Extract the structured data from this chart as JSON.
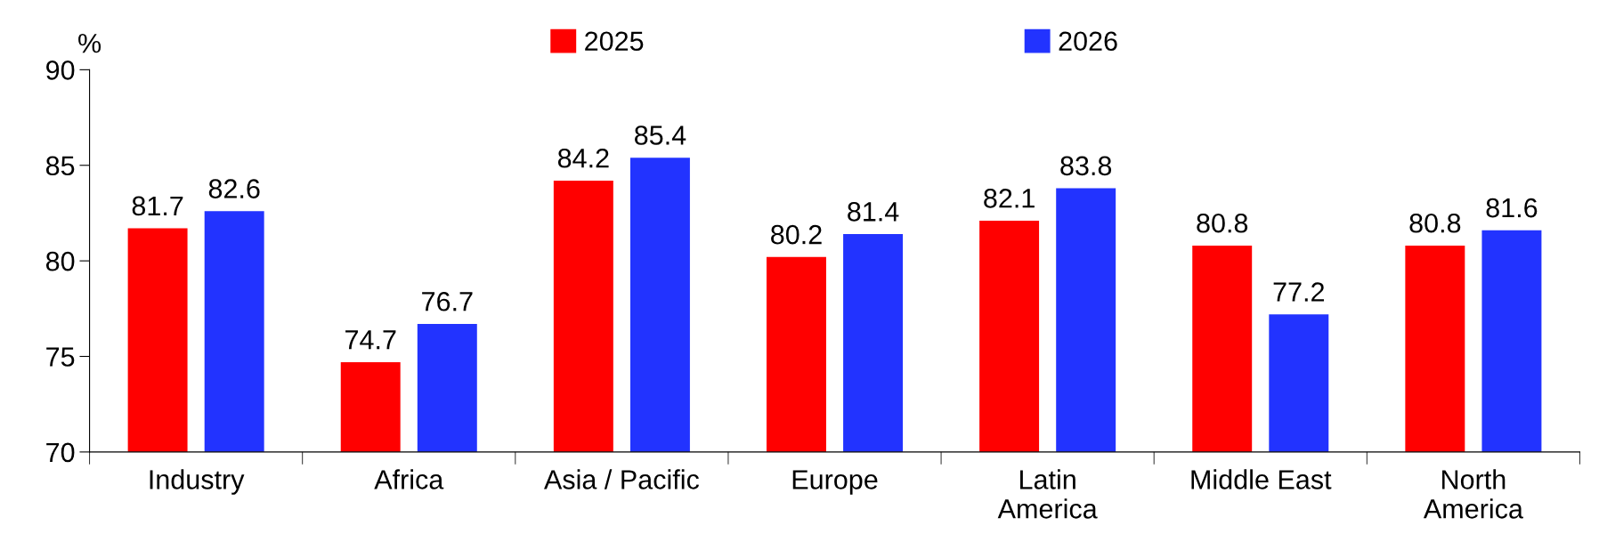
{
  "chart_data": {
    "type": "bar",
    "ylabel": "%",
    "categories": [
      "Industry",
      "Africa",
      "Asia / Pacific",
      "Europe",
      "Latin\nAmerica",
      "Middle East",
      "North\nAmerica"
    ],
    "series": [
      {
        "name": "2025",
        "color": "#ff0000",
        "values": [
          81.7,
          74.7,
          84.2,
          80.2,
          82.1,
          80.8,
          80.8
        ]
      },
      {
        "name": "2026",
        "color": "#2233ff",
        "values": [
          82.6,
          76.7,
          85.4,
          81.4,
          83.8,
          77.2,
          81.6
        ]
      }
    ],
    "ylim": [
      70,
      90
    ],
    "yticks": [
      70,
      75,
      80,
      85,
      90
    ],
    "data_labels": true,
    "legend": "top",
    "grid": false
  }
}
